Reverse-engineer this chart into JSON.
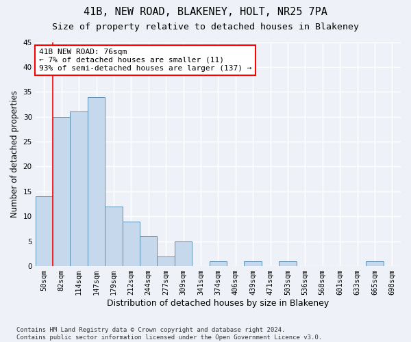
{
  "title": "41B, NEW ROAD, BLAKENEY, HOLT, NR25 7PA",
  "subtitle": "Size of property relative to detached houses in Blakeney",
  "xlabel": "Distribution of detached houses by size in Blakeney",
  "ylabel": "Number of detached properties",
  "bin_labels": [
    "50sqm",
    "82sqm",
    "114sqm",
    "147sqm",
    "179sqm",
    "212sqm",
    "244sqm",
    "277sqm",
    "309sqm",
    "341sqm",
    "374sqm",
    "406sqm",
    "439sqm",
    "471sqm",
    "503sqm",
    "536sqm",
    "568sqm",
    "601sqm",
    "633sqm",
    "665sqm",
    "698sqm"
  ],
  "bar_heights": [
    14,
    30,
    31,
    34,
    12,
    9,
    6,
    2,
    5,
    0,
    1,
    0,
    1,
    0,
    1,
    0,
    0,
    0,
    0,
    1,
    0
  ],
  "bar_color": "#c5d8ec",
  "bar_edge_color": "#5b8db0",
  "annotation_box_text": "41B NEW ROAD: 76sqm\n← 7% of detached houses are smaller (11)\n93% of semi-detached houses are larger (137) →",
  "annotation_box_color": "white",
  "annotation_box_edge_color": "red",
  "annotation_line_color": "red",
  "ylim": [
    0,
    45
  ],
  "yticks": [
    0,
    5,
    10,
    15,
    20,
    25,
    30,
    35,
    40,
    45
  ],
  "footnote": "Contains HM Land Registry data © Crown copyright and database right 2024.\nContains public sector information licensed under the Open Government Licence v3.0.",
  "bg_color": "#eef2f8",
  "grid_color": "#ffffff",
  "title_fontsize": 11,
  "subtitle_fontsize": 9.5,
  "xlabel_fontsize": 9,
  "ylabel_fontsize": 8.5,
  "tick_fontsize": 7.5,
  "annotation_fontsize": 8,
  "footnote_fontsize": 6.5
}
